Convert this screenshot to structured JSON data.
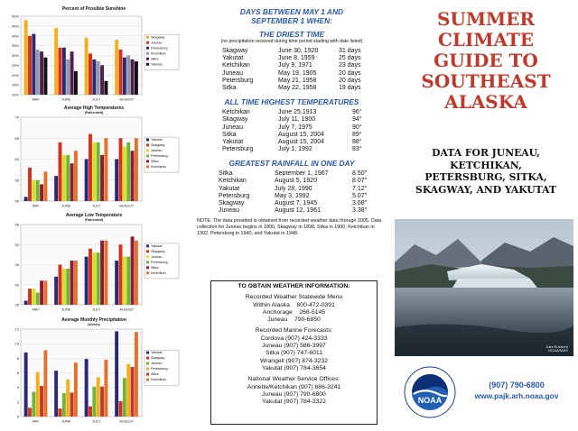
{
  "chart_data": [
    {
      "type": "bar",
      "title": "Percent of Possible Sunshine",
      "subtitle": "",
      "categories": [
        "MAY",
        "JUNE",
        "JULY",
        "AUGUST"
      ],
      "yticks": [
        "10%",
        "15%",
        "20%",
        "25%",
        "30%",
        "35%",
        "40%",
        "45%",
        "50%"
      ],
      "ylim": [
        10,
        50
      ],
      "series": [
        {
          "name": "Skagway",
          "color": "#f2b01e",
          "values": [
            48,
            44,
            39,
            38
          ]
        },
        {
          "name": "Juneau",
          "color": "#d4321c",
          "values": [
            40,
            34,
            31,
            33
          ]
        },
        {
          "name": "Petersburg",
          "color": "#2b2875",
          "values": [
            41,
            34,
            28,
            29
          ]
        },
        {
          "name": "Ketchikan",
          "color": "#8e9bab",
          "values": [
            33,
            28,
            27,
            30
          ]
        },
        {
          "name": "Sitka",
          "color": "#541c50",
          "values": [
            32,
            32,
            25,
            28
          ]
        },
        {
          "name": "Yakutat",
          "color": "#111111",
          "values": [
            29,
            22,
            17,
            27
          ]
        }
      ]
    },
    {
      "type": "bar",
      "title": "Average High Temperatures",
      "subtitle": "(Fahrenheit)",
      "categories": [
        "MAY",
        "JUNE",
        "JULY",
        "AUGUST"
      ],
      "yticks": [
        "50",
        "55",
        "60",
        "65",
        "70"
      ],
      "ylim": [
        50,
        70
      ],
      "series": [
        {
          "name": "Yakutat",
          "color": "#2b2875",
          "values": [
            51,
            56,
            60,
            60
          ]
        },
        {
          "name": "Skagway",
          "color": "#d4321c",
          "values": [
            58,
            64,
            66,
            65
          ]
        },
        {
          "name": "Juneau",
          "color": "#d9e021",
          "values": [
            55,
            61,
            64,
            63
          ]
        },
        {
          "name": "Petersburg",
          "color": "#72b43a",
          "values": [
            55,
            61,
            64,
            64
          ]
        },
        {
          "name": "Sitka",
          "color": "#8e1c34",
          "values": [
            54,
            59,
            61,
            62
          ]
        },
        {
          "name": "Ketchikan",
          "color": "#e8702a",
          "values": [
            57,
            62,
            65,
            65
          ]
        }
      ]
    },
    {
      "type": "bar",
      "title": "Average Low Temperature",
      "subtitle": "(Fahrenheit)",
      "categories": [
        "MAY",
        "JUNE",
        "JULY",
        "AUGUST"
      ],
      "yticks": [
        "35",
        "40",
        "45",
        "50",
        "55"
      ],
      "ylim": [
        35,
        55
      ],
      "series": [
        {
          "name": "Yakutat",
          "color": "#2b2875",
          "values": [
            36,
            42,
            47,
            46
          ]
        },
        {
          "name": "Skagway",
          "color": "#d4321c",
          "values": [
            39,
            45,
            49,
            50
          ]
        },
        {
          "name": "Juneau",
          "color": "#d9e021",
          "values": [
            39,
            44,
            48,
            47
          ]
        },
        {
          "name": "Petersburg",
          "color": "#72b43a",
          "values": [
            38,
            44,
            48,
            47
          ]
        },
        {
          "name": "Sitka",
          "color": "#8e1c34",
          "values": [
            41,
            46,
            51,
            52
          ]
        },
        {
          "name": "Ketchikan",
          "color": "#e8702a",
          "values": [
            41,
            46,
            51,
            51
          ]
        }
      ]
    },
    {
      "type": "bar",
      "title": "Average Monthly Precipitation",
      "subtitle": "(Inches)",
      "categories": [
        "MAY",
        "JUNE",
        "JULY",
        "AUGUST"
      ],
      "yticks": [
        "0",
        "2",
        "4",
        "6",
        "8",
        "10",
        "12"
      ],
      "ylim": [
        0,
        12
      ],
      "series": [
        {
          "name": "Yakutat",
          "color": "#2b2875",
          "values": [
            8.8,
            6.3,
            7.9,
            11.7
          ]
        },
        {
          "name": "Skagway",
          "color": "#d4321c",
          "values": [
            1.2,
            1.1,
            1.4,
            2.1
          ]
        },
        {
          "name": "Juneau",
          "color": "#72b43a",
          "values": [
            3.4,
            3.2,
            4.1,
            5.3
          ]
        },
        {
          "name": "Petersburg",
          "color": "#f2b01e",
          "values": [
            6.1,
            5.1,
            5.4,
            7.2
          ]
        },
        {
          "name": "Sitka",
          "color": "#c0392b",
          "values": [
            4.2,
            3.3,
            4.1,
            6.8
          ]
        },
        {
          "name": "Ketchikan",
          "color": "#e8702a",
          "values": [
            9.1,
            7.4,
            7.8,
            11.6
          ]
        }
      ]
    }
  ],
  "driest": {
    "header1": "DAYS BETWEEN MAY 1 AND",
    "header2": "SEPTEMBER 1 WHEN:",
    "title": "THE DRIEST TIME",
    "note": "(no precipitation received during time period starting with date listed)",
    "rows": [
      {
        "place": "Skagway",
        "date": "June 30, 1920",
        "value": "31 days"
      },
      {
        "place": "Yakutat",
        "date": "June 8, 1959",
        "value": "25 days"
      },
      {
        "place": "Ketchikan",
        "date": "July 9, 1971",
        "value": "23 days"
      },
      {
        "place": "Juneau",
        "date": "May 19, 1905",
        "value": "20 days"
      },
      {
        "place": "Petersburg",
        "date": "May 21, 1958",
        "value": "20 days"
      },
      {
        "place": "Sitka",
        "date": "May 22, 1958",
        "value": "19 days"
      }
    ]
  },
  "highest": {
    "title": "ALL TIME HIGHEST TEMPERATURES",
    "rows": [
      {
        "place": "Ketchikan",
        "date": "June 25,1913",
        "value": "96°"
      },
      {
        "place": "Skagway",
        "date": "July 11, 1900",
        "value": "94°"
      },
      {
        "place": "Juneau",
        "date": "July 7, 1975",
        "value": "90°"
      },
      {
        "place": "Sitka",
        "date": "August 15, 2004",
        "value": "89°"
      },
      {
        "place": "Yakutat",
        "date": "August 15, 2004",
        "value": "88°"
      },
      {
        "place": "Petersburg",
        "date": "July 1, 1992",
        "value": "83°"
      }
    ]
  },
  "rainfall": {
    "title": "GREATEST RAINFALL IN ONE DAY",
    "rows": [
      {
        "place": "Sitka",
        "date": "September 1, 1967",
        "value": "8.50\""
      },
      {
        "place": "Ketchikan",
        "date": "August 5, 1920",
        "value": "8.07\""
      },
      {
        "place": "Yakutat",
        "date": "July 28, 1990",
        "value": "7.12\""
      },
      {
        "place": "Petersburg",
        "date": "May 3, 1992",
        "value": "5.07\""
      },
      {
        "place": "Skagway",
        "date": "August 7, 1945",
        "value": "3.68\""
      },
      {
        "place": "Juneau",
        "date": "August 12, 1961",
        "value": "3.38\""
      }
    ]
  },
  "note": "NOTE:  The data provided is obtained from recorded weather data through 2005.  Data collection for Juneau begins in 1890, Skagway in 1898, Sitka in 1900, Ketchikan in 1902, Petersburg in 1940, and Yakutat in 1948.",
  "obtain": {
    "title": "TO OBTAIN WEATHER INFORMATION:",
    "recorded": {
      "title": "Recorded Weather Statewide Menu",
      "lines": [
        {
          "label": "Within Alaska",
          "phone": "800-472-0391"
        },
        {
          "label": "Anchorage",
          "phone": "266-5145"
        },
        {
          "label": "Juneau",
          "phone": "790-6850"
        }
      ]
    },
    "marine": {
      "title": "Recorded Marine Forecasts:",
      "lines": [
        "Cordova  (907) 424-3333",
        "Juneau  (907) 586-3997",
        "Sitka  (907) 747-6011",
        "Wrangell  (907) 874-3232",
        "Yakutat  (907) 784-3654"
      ]
    },
    "nws": {
      "title": "National Weather Service Offices:",
      "lines": [
        "Annette/Ketchikan  (907) 886-3241",
        "Juneau  (907) 790-6800",
        "Yakutat  (907) 784-3322"
      ]
    }
  },
  "cover": {
    "title_lines": [
      "SUMMER",
      "CLIMATE",
      "GUIDE TO",
      "SOUTHEAST",
      "ALASKA"
    ],
    "subtitle_lines": [
      "DATA FOR JUNEAU,",
      "KETCHIKAN,",
      "PETERSBURG, SITKA,",
      "SKAGWAY, AND YAKUTAT"
    ],
    "photo_credit_1": "Julia Ruthford",
    "photo_credit_2": "NOAA/NWS",
    "phone": "(907) 790-6800",
    "website": "www.pajk.arh.noaa.gov",
    "logo_text": "NOAA",
    "accent_color": "#2a57a8",
    "title_color": "#c0392b"
  }
}
